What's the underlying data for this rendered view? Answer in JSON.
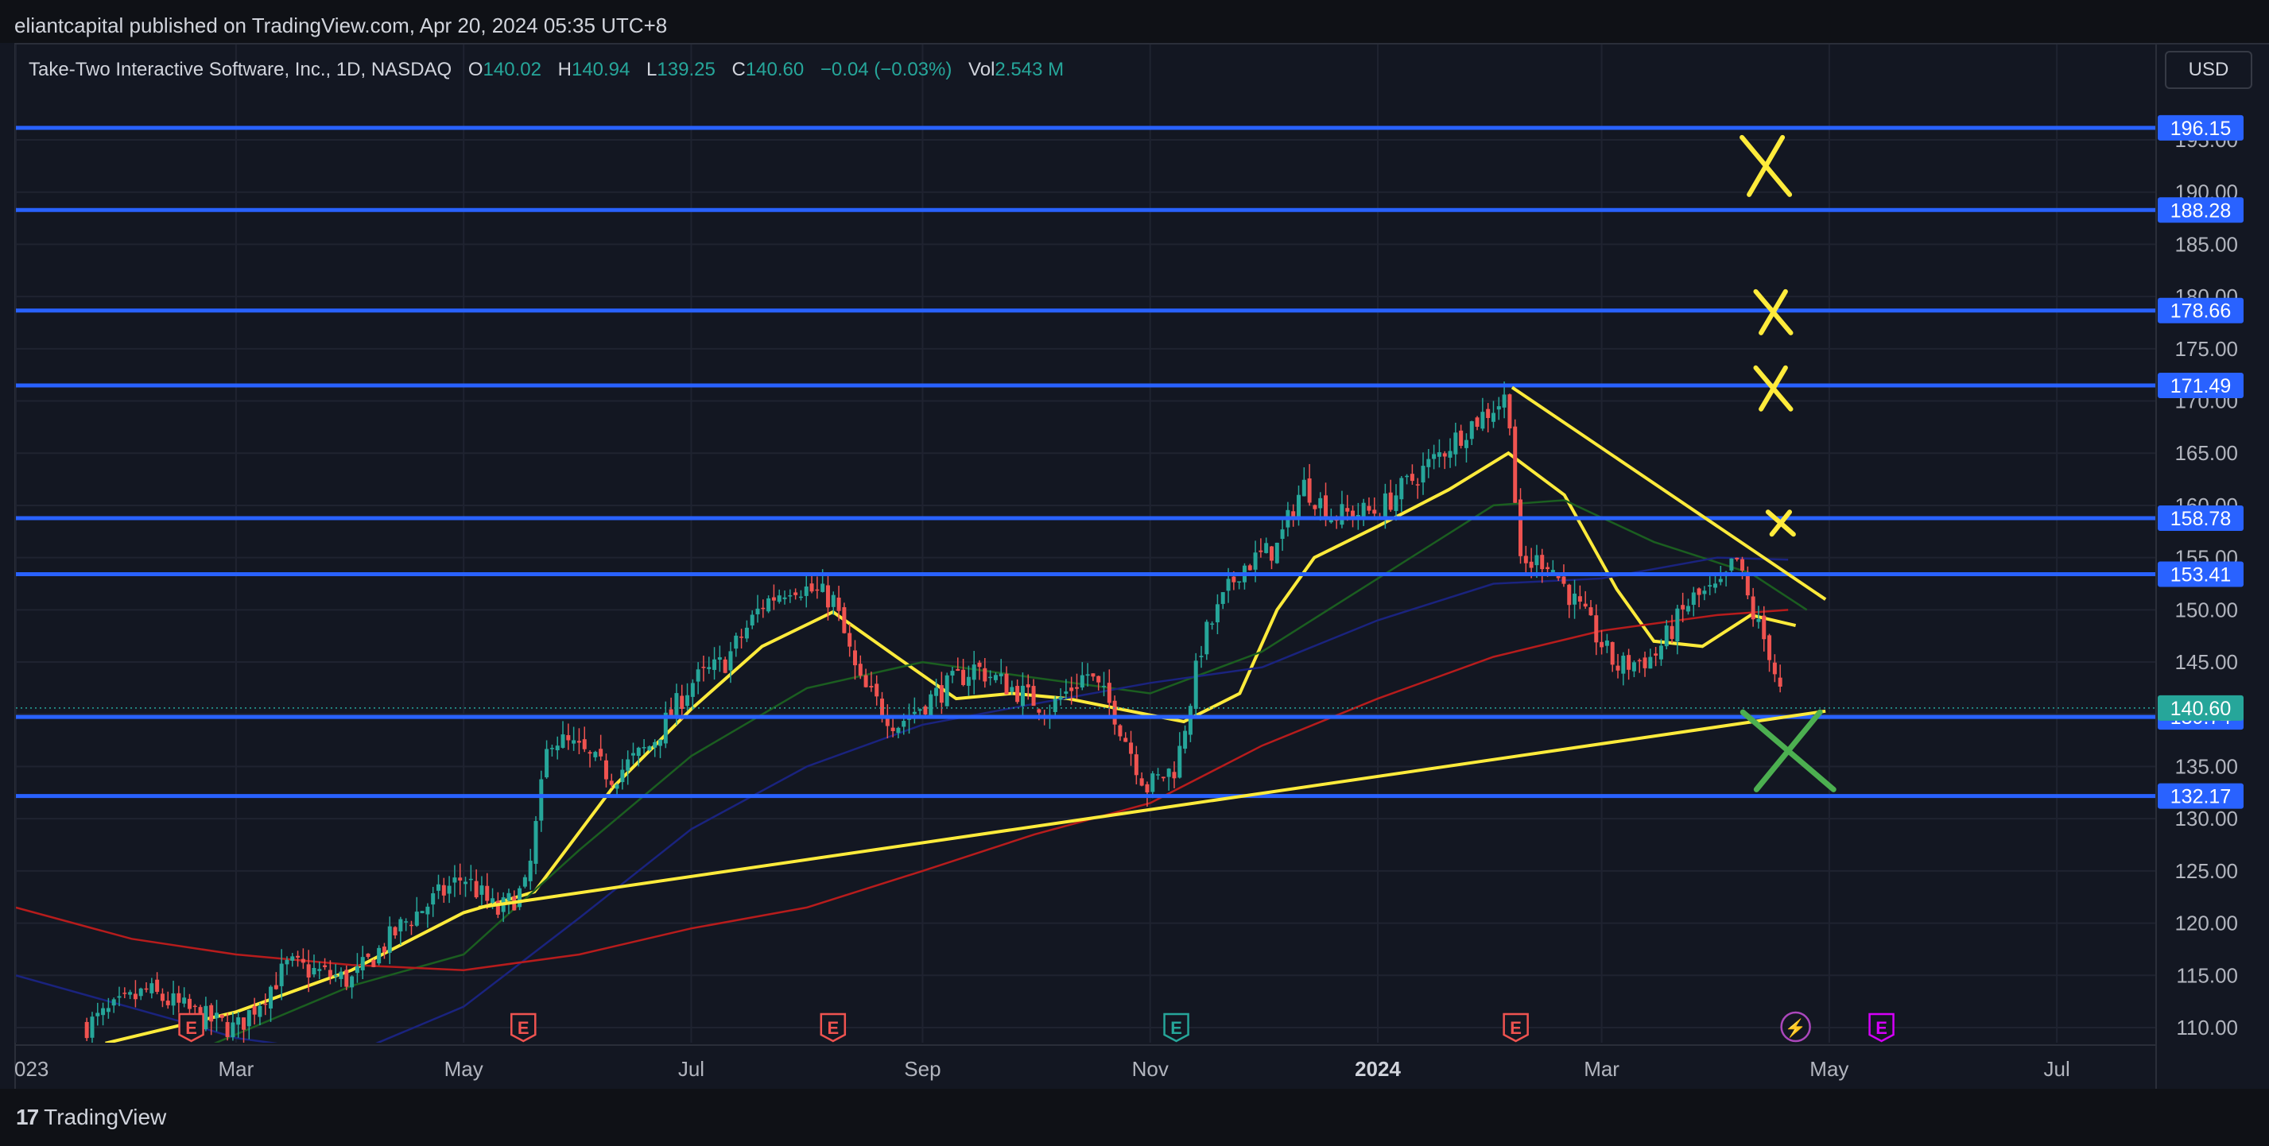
{
  "header": {
    "published": "eliantcapital published on TradingView.com, Apr 20, 2024 05:35 UTC+8"
  },
  "legend": {
    "symbol": "Take-Two Interactive Software, Inc., 1D, NASDAQ",
    "open_label": "O",
    "open": "140.02",
    "high_label": "H",
    "high": "140.94",
    "low_label": "L",
    "low": "139.25",
    "close_label": "C",
    "close": "140.60",
    "change": "−0.04 (−0.03%)",
    "vol_label": "Vol",
    "vol": "2.543 M"
  },
  "currency": "USD",
  "footer": {
    "brand": "TradingView"
  },
  "colors": {
    "background": "#131722",
    "level_line": "#2962ff",
    "up": "#26a69a",
    "down": "#ef5350",
    "trendline": "#ffeb3b",
    "ma_yellow": "#ffeb3b",
    "ma_green": "#1b5e20",
    "ma_blue": "#1a237e",
    "ma_red": "#b71c1c",
    "cross_yellow": "#ffeb3b",
    "cross_green": "#4caf50"
  },
  "chart_data": {
    "type": "candlestick",
    "ylim": [
      108,
      200
    ],
    "y_ticks": [
      110,
      115,
      120,
      125,
      130,
      135,
      140,
      145,
      150,
      155,
      160,
      165,
      170,
      175,
      180,
      185,
      190,
      195
    ],
    "y_tick_labels": [
      "110.00",
      "115.00",
      "120.00",
      "125.00",
      "130.00",
      "135.00",
      "140.00",
      "145.00",
      "150.00",
      "155.00",
      "160.00",
      "165.00",
      "170.00",
      "175.00",
      "180.00",
      "185.00",
      "190.00",
      "195.00"
    ],
    "x_ticks": [
      {
        "date": "2023-01-01",
        "label": "023",
        "bold": false
      },
      {
        "date": "2023-03-01",
        "label": "Mar",
        "bold": false
      },
      {
        "date": "2023-05-01",
        "label": "May",
        "bold": false
      },
      {
        "date": "2023-07-01",
        "label": "Jul",
        "bold": false
      },
      {
        "date": "2023-09-01",
        "label": "Sep",
        "bold": false
      },
      {
        "date": "2023-11-01",
        "label": "Nov",
        "bold": false
      },
      {
        "date": "2024-01-01",
        "label": "2024",
        "bold": true
      },
      {
        "date": "2024-03-01",
        "label": "Mar",
        "bold": false
      },
      {
        "date": "2024-05-01",
        "label": "May",
        "bold": false
      },
      {
        "date": "2024-07-01",
        "label": "Jul",
        "bold": false
      }
    ],
    "levels": [
      {
        "value": 196.15,
        "label": "196.15"
      },
      {
        "value": 188.28,
        "label": "188.28"
      },
      {
        "value": 178.66,
        "label": "178.66"
      },
      {
        "value": 171.49,
        "label": "171.49"
      },
      {
        "value": 158.78,
        "label": "158.78"
      },
      {
        "value": 153.41,
        "label": "153.41"
      },
      {
        "value": 139.74,
        "label": "139.74"
      },
      {
        "value": 132.17,
        "label": "132.17"
      }
    ],
    "last_price": {
      "value": 140.6,
      "label": "140.60"
    },
    "price_path": [
      [
        "2023-01-20",
        110.2
      ],
      [
        "2023-02-05",
        113.5
      ],
      [
        "2023-02-20",
        111.0
      ],
      [
        "2023-03-01",
        109.8
      ],
      [
        "2023-03-15",
        116.0
      ],
      [
        "2023-04-01",
        114.5
      ],
      [
        "2023-04-15",
        120.0
      ],
      [
        "2023-05-01",
        124.5
      ],
      [
        "2023-05-10",
        121.0
      ],
      [
        "2023-05-18",
        123.5
      ],
      [
        "2023-05-24",
        138.0
      ],
      [
        "2023-06-01",
        136.5
      ],
      [
        "2023-06-10",
        134.0
      ],
      [
        "2023-06-20",
        137.0
      ],
      [
        "2023-07-01",
        143.0
      ],
      [
        "2023-07-10",
        145.0
      ],
      [
        "2023-07-20",
        150.5
      ],
      [
        "2023-07-28",
        152.5
      ],
      [
        "2023-08-08",
        151.0
      ],
      [
        "2023-08-15",
        143.0
      ],
      [
        "2023-08-25",
        139.0
      ],
      [
        "2023-09-05",
        142.0
      ],
      [
        "2023-09-15",
        144.5
      ],
      [
        "2023-09-25",
        142.5
      ],
      [
        "2023-10-05",
        140.5
      ],
      [
        "2023-10-15",
        144.0
      ],
      [
        "2023-10-22",
        140.5
      ],
      [
        "2023-10-31",
        133.0
      ],
      [
        "2023-11-08",
        135.0
      ],
      [
        "2023-11-15",
        147.0
      ],
      [
        "2023-11-25",
        154.0
      ],
      [
        "2023-12-05",
        156.0
      ],
      [
        "2023-12-12",
        162.0
      ],
      [
        "2023-12-20",
        159.0
      ],
      [
        "2024-01-01",
        159.5
      ],
      [
        "2024-01-15",
        164.0
      ],
      [
        "2024-01-25",
        167.5
      ],
      [
        "2024-02-05",
        170.5
      ],
      [
        "2024-02-08",
        154.0
      ],
      [
        "2024-02-15",
        155.0
      ],
      [
        "2024-02-25",
        149.5
      ],
      [
        "2024-03-05",
        144.5
      ],
      [
        "2024-03-15",
        145.5
      ],
      [
        "2024-03-25",
        151.0
      ],
      [
        "2024-04-02",
        152.0
      ],
      [
        "2024-04-06",
        155.0
      ],
      [
        "2024-04-10",
        150.0
      ],
      [
        "2024-04-15",
        146.0
      ],
      [
        "2024-04-19",
        140.6
      ]
    ],
    "moving_averages": [
      {
        "color": "ma_yellow",
        "points": [
          [
            "2023-01-25",
            108.5
          ],
          [
            "2023-03-01",
            111.5
          ],
          [
            "2023-04-01",
            115.5
          ],
          [
            "2023-05-01",
            121.0
          ],
          [
            "2023-05-20",
            123.0
          ],
          [
            "2023-06-10",
            133.0
          ],
          [
            "2023-07-01",
            140.5
          ],
          [
            "2023-07-20",
            146.5
          ],
          [
            "2023-08-08",
            149.8
          ],
          [
            "2023-08-25",
            145.5
          ],
          [
            "2023-09-10",
            141.5
          ],
          [
            "2023-09-25",
            142.0
          ],
          [
            "2023-10-10",
            141.5
          ],
          [
            "2023-10-31",
            140.0
          ],
          [
            "2023-11-10",
            139.3
          ],
          [
            "2023-11-25",
            142.0
          ],
          [
            "2023-12-05",
            150.0
          ],
          [
            "2023-12-15",
            155.0
          ],
          [
            "2024-01-01",
            158.0
          ],
          [
            "2024-01-20",
            161.5
          ],
          [
            "2024-02-05",
            165.0
          ],
          [
            "2024-02-20",
            161.0
          ],
          [
            "2024-03-05",
            152.0
          ],
          [
            "2024-03-15",
            147.0
          ],
          [
            "2024-03-28",
            146.5
          ],
          [
            "2024-04-10",
            149.5
          ],
          [
            "2024-04-22",
            148.5
          ]
        ]
      },
      {
        "color": "ma_green",
        "points": [
          [
            "2023-02-20",
            108.0
          ],
          [
            "2023-04-01",
            114.0
          ],
          [
            "2023-05-01",
            117.0
          ],
          [
            "2023-06-01",
            127.0
          ],
          [
            "2023-07-01",
            136.0
          ],
          [
            "2023-08-01",
            142.5
          ],
          [
            "2023-09-01",
            145.0
          ],
          [
            "2023-10-01",
            143.5
          ],
          [
            "2023-11-01",
            142.0
          ],
          [
            "2023-12-01",
            146.0
          ],
          [
            "2024-01-01",
            153.0
          ],
          [
            "2024-02-01",
            160.0
          ],
          [
            "2024-02-20",
            160.5
          ],
          [
            "2024-03-15",
            156.5
          ],
          [
            "2024-04-10",
            153.5
          ],
          [
            "2024-04-25",
            150.0
          ]
        ]
      },
      {
        "color": "ma_blue",
        "points": [
          [
            "2023-01-01",
            115.0
          ],
          [
            "2023-02-15",
            110.5
          ],
          [
            "2023-03-01",
            109.0
          ],
          [
            "2023-04-01",
            107.5
          ],
          [
            "2023-05-01",
            112.0
          ],
          [
            "2023-06-01",
            120.5
          ],
          [
            "2023-07-01",
            129.0
          ],
          [
            "2023-08-01",
            135.0
          ],
          [
            "2023-09-01",
            139.0
          ],
          [
            "2023-10-01",
            141.0
          ],
          [
            "2023-11-01",
            143.0
          ],
          [
            "2023-12-01",
            144.5
          ],
          [
            "2024-01-01",
            149.0
          ],
          [
            "2024-02-01",
            152.5
          ],
          [
            "2024-03-01",
            153.0
          ],
          [
            "2024-04-01",
            155.0
          ],
          [
            "2024-04-20",
            154.8
          ]
        ]
      },
      {
        "color": "ma_red",
        "points": [
          [
            "2023-01-01",
            121.5
          ],
          [
            "2023-02-01",
            118.5
          ],
          [
            "2023-03-01",
            117.0
          ],
          [
            "2023-04-01",
            116.0
          ],
          [
            "2023-05-01",
            115.5
          ],
          [
            "2023-06-01",
            117.0
          ],
          [
            "2023-07-01",
            119.5
          ],
          [
            "2023-08-01",
            121.5
          ],
          [
            "2023-09-01",
            125.0
          ],
          [
            "2023-10-01",
            128.5
          ],
          [
            "2023-11-01",
            131.5
          ],
          [
            "2023-12-01",
            137.0
          ],
          [
            "2024-01-01",
            141.5
          ],
          [
            "2024-02-01",
            145.5
          ],
          [
            "2024-03-01",
            148.0
          ],
          [
            "2024-04-01",
            149.5
          ],
          [
            "2024-04-20",
            150.0
          ]
        ]
      }
    ],
    "trendlines": [
      {
        "from": [
          "2023-05-05",
          121.5
        ],
        "to": [
          "2024-04-30",
          140.3
        ]
      },
      {
        "from": [
          "2024-02-06",
          171.3
        ],
        "to": [
          "2024-04-30",
          151.0
        ]
      }
    ],
    "cross_marks": [
      {
        "date": "2024-04-14",
        "value": 192.5,
        "color": "cross_yellow",
        "size": "large"
      },
      {
        "date": "2024-04-16",
        "value": 178.5,
        "color": "cross_yellow",
        "size": "medium"
      },
      {
        "date": "2024-04-16",
        "value": 171.2,
        "color": "cross_yellow",
        "size": "medium"
      },
      {
        "date": "2024-04-18",
        "value": 158.3,
        "color": "cross_yellow",
        "size": "small"
      },
      {
        "date": "2024-04-20",
        "value": 136.5,
        "color": "cross_green",
        "size": "large"
      }
    ],
    "event_markers": [
      {
        "date": "2023-02-17",
        "glyph": "E",
        "color": "down"
      },
      {
        "date": "2023-05-17",
        "glyph": "E",
        "color": "down"
      },
      {
        "date": "2023-08-08",
        "glyph": "E",
        "color": "down"
      },
      {
        "date": "2023-11-08",
        "glyph": "E",
        "color": "up"
      },
      {
        "date": "2024-02-07",
        "glyph": "E",
        "color": "down"
      },
      {
        "date": "2024-04-22",
        "glyph": "⚡",
        "color": "purple"
      },
      {
        "date": "2024-05-15",
        "glyph": "E",
        "color": "magenta"
      }
    ]
  }
}
